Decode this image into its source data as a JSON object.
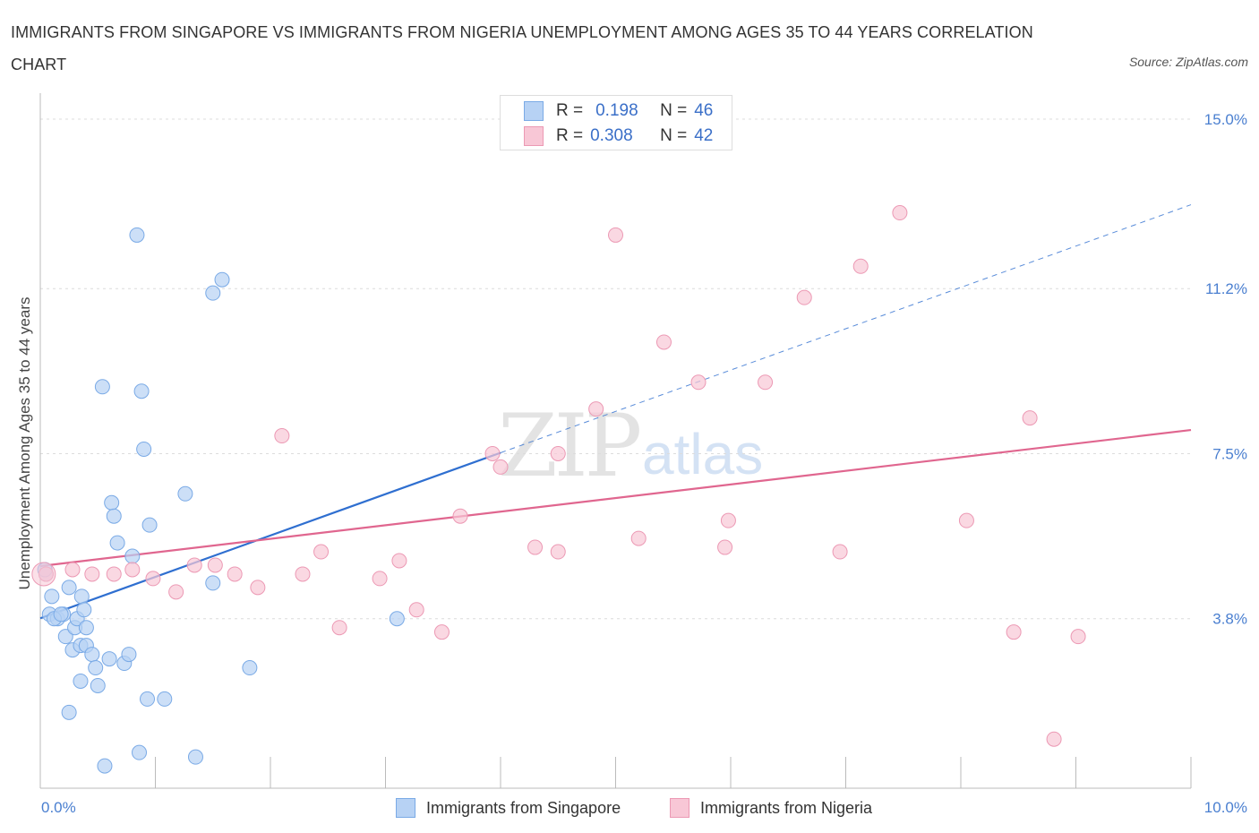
{
  "title": "IMMIGRANTS FROM SINGAPORE VS IMMIGRANTS FROM NIGERIA UNEMPLOYMENT AMONG AGES 35 TO 44 YEARS CORRELATION CHART",
  "source": "Source: ZipAtlas.com",
  "watermark": {
    "zip": "ZIP",
    "atlas": "atlas"
  },
  "legend": {
    "r_label": "R =",
    "n_label": "N =",
    "singapore": {
      "r": "0.198",
      "n": "46"
    },
    "nigeria": {
      "r": "0.308",
      "n": "42"
    }
  },
  "bottom_legend": {
    "singapore": "Immigrants from Singapore",
    "nigeria": "Immigrants from Nigeria"
  },
  "colors": {
    "singapore_fill": "#b7d2f4",
    "singapore_stroke": "#7aaae6",
    "singapore_line": "#2f6fd0",
    "nigeria_fill": "#f8c7d6",
    "nigeria_stroke": "#ec99b4",
    "nigeria_line": "#e0668f",
    "tick_text": "#4a7fd0"
  },
  "chart_data": {
    "type": "scatter",
    "title": "IMMIGRANTS FROM SINGAPORE VS IMMIGRANTS FROM NIGERIA UNEMPLOYMENT AMONG AGES 35 TO 44 YEARS CORRELATION CHART",
    "xlabel": "",
    "ylabel": "Unemployment Among Ages 35 to 44 years",
    "xlim": [
      0,
      10
    ],
    "ylim": [
      0,
      15.3
    ],
    "x_tick_labels": [
      "0.0%",
      "10.0%"
    ],
    "y_ticks": [
      3.8,
      7.5,
      11.2,
      15.0
    ],
    "y_tick_labels": [
      "3.8%",
      "7.5%",
      "11.2%",
      "15.0%"
    ],
    "grid": true,
    "legend_position": "top-center",
    "series": [
      {
        "name": "Immigrants from Singapore",
        "points": [
          [
            0.05,
            4.8
          ],
          [
            0.08,
            3.9
          ],
          [
            0.1,
            4.3
          ],
          [
            0.15,
            3.8
          ],
          [
            0.2,
            3.9
          ],
          [
            0.22,
            3.4
          ],
          [
            0.25,
            4.5
          ],
          [
            0.25,
            1.7
          ],
          [
            0.28,
            3.1
          ],
          [
            0.3,
            3.6
          ],
          [
            0.32,
            3.8
          ],
          [
            0.35,
            2.4
          ],
          [
            0.35,
            3.2
          ],
          [
            0.36,
            4.3
          ],
          [
            0.38,
            4.0
          ],
          [
            0.4,
            3.6
          ],
          [
            0.4,
            3.2
          ],
          [
            0.45,
            3.0
          ],
          [
            0.48,
            2.7
          ],
          [
            0.5,
            2.3
          ],
          [
            0.54,
            9.0
          ],
          [
            0.56,
            0.5
          ],
          [
            0.6,
            2.9
          ],
          [
            0.62,
            6.4
          ],
          [
            0.64,
            6.1
          ],
          [
            0.67,
            5.5
          ],
          [
            0.73,
            2.8
          ],
          [
            0.77,
            3.0
          ],
          [
            0.8,
            5.2
          ],
          [
            0.84,
            12.4
          ],
          [
            0.86,
            0.8
          ],
          [
            0.88,
            8.9
          ],
          [
            0.9,
            7.6
          ],
          [
            0.93,
            2.0
          ],
          [
            0.95,
            5.9
          ],
          [
            1.08,
            2.0
          ],
          [
            1.26,
            6.6
          ],
          [
            1.35,
            0.7
          ],
          [
            1.5,
            11.1
          ],
          [
            1.5,
            4.6
          ],
          [
            1.58,
            11.4
          ],
          [
            1.82,
            2.7
          ],
          [
            3.1,
            3.8
          ],
          [
            0.04,
            4.9
          ],
          [
            0.12,
            3.8
          ],
          [
            0.18,
            3.9
          ]
        ]
      },
      {
        "name": "Immigrants from Nigeria",
        "points": [
          [
            0.05,
            4.8
          ],
          [
            0.28,
            4.9
          ],
          [
            0.45,
            4.8
          ],
          [
            0.64,
            4.8
          ],
          [
            0.8,
            4.9
          ],
          [
            0.98,
            4.7
          ],
          [
            1.18,
            4.4
          ],
          [
            1.34,
            5.0
          ],
          [
            1.52,
            5.0
          ],
          [
            1.69,
            4.8
          ],
          [
            1.89,
            4.5
          ],
          [
            2.1,
            7.9
          ],
          [
            2.28,
            4.8
          ],
          [
            2.44,
            5.3
          ],
          [
            2.6,
            3.6
          ],
          [
            2.95,
            4.7
          ],
          [
            3.12,
            5.1
          ],
          [
            3.27,
            4.0
          ],
          [
            3.49,
            3.5
          ],
          [
            3.65,
            6.1
          ],
          [
            3.93,
            7.5
          ],
          [
            4.0,
            7.2
          ],
          [
            4.3,
            5.4
          ],
          [
            4.5,
            5.3
          ],
          [
            4.5,
            7.5
          ],
          [
            4.83,
            8.5
          ],
          [
            5.0,
            12.4
          ],
          [
            5.2,
            5.6
          ],
          [
            5.42,
            10.0
          ],
          [
            5.72,
            9.1
          ],
          [
            5.95,
            5.4
          ],
          [
            5.98,
            6.0
          ],
          [
            6.3,
            9.1
          ],
          [
            6.64,
            11.0
          ],
          [
            6.95,
            5.3
          ],
          [
            7.13,
            11.7
          ],
          [
            7.47,
            12.9
          ],
          [
            8.05,
            6.0
          ],
          [
            8.46,
            3.5
          ],
          [
            8.6,
            8.3
          ],
          [
            8.81,
            1.1
          ],
          [
            9.02,
            3.4
          ]
        ]
      }
    ],
    "trend_lines": [
      {
        "series": "Immigrants from Singapore",
        "x": [
          0,
          4
        ],
        "y": [
          3.81,
          7.52
        ],
        "dashed_extension": {
          "x": [
            4,
            10
          ],
          "y": [
            7.52,
            13.08
          ]
        }
      },
      {
        "series": "Immigrants from Nigeria",
        "x": [
          0,
          10
        ],
        "y": [
          4.98,
          8.03
        ]
      }
    ]
  }
}
